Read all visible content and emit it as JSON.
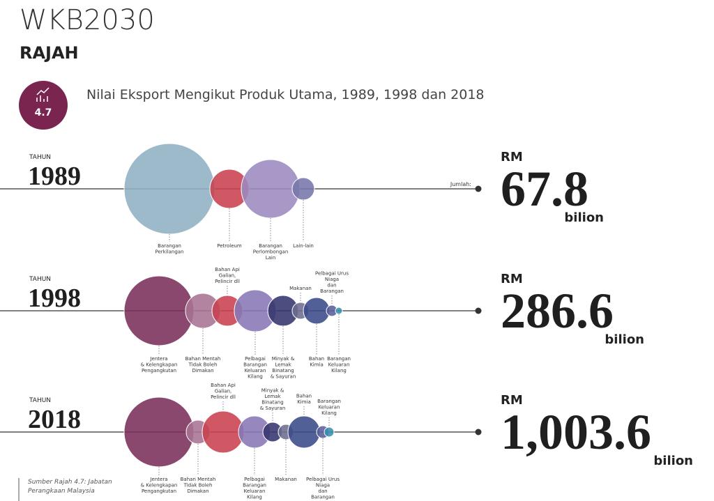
{
  "header": {
    "brand": "WKB2030",
    "section": "RAJAH"
  },
  "figure": {
    "number": "4.7",
    "title": "Nilai Eksport Mengikut Produk Utama, 1989, 1998 dan 2018"
  },
  "rows": [
    {
      "year_label": "TAHUN",
      "year": "1989",
      "total_label": "Jumlah:",
      "currency": "RM",
      "total": "67.8",
      "unit": "bilion",
      "products": [
        [
          "Barangan",
          "Perkilangan"
        ],
        [
          "Petroleum"
        ],
        [
          "Barangan",
          "Perlombongan",
          "Lain"
        ],
        [
          "Lain-lain"
        ]
      ]
    },
    {
      "year_label": "TAHUN",
      "year": "1998",
      "currency": "RM",
      "total": "286.6",
      "unit": "bilion",
      "products": [
        [
          "Jentera",
          "& Kelengkapan",
          "Pengangkutan"
        ],
        [
          "Bahan Mentah",
          "Tidak Boleh",
          "Dimakan"
        ],
        [
          "Bahan Api",
          "Galian,",
          "Pelincir dll"
        ],
        [
          "Pelbagai",
          "Barangan",
          "Keluaran",
          "Kilang"
        ],
        [
          "Minyak &",
          "Lemak",
          "Binatang",
          "& Sayuran"
        ],
        [
          "Makanan"
        ],
        [
          "Bahan",
          "Kimia"
        ],
        [
          "Pelbagai Urus",
          "Niaga",
          "dan",
          "Barangan"
        ],
        [
          "Barangan",
          "Keluaran",
          "Kilang"
        ]
      ]
    },
    {
      "year_label": "TAHUN",
      "year": "2018",
      "currency": "RM",
      "total": "1,003.6",
      "unit": "bilion",
      "products": [
        [
          "Jentera",
          "& Kelengkapan",
          "Pengangkutan"
        ],
        [
          "Bahan Mentah",
          "Tidak Boleh",
          "Dimakan"
        ],
        [
          "Bahan Api",
          "Galian,",
          "Pelincir dll"
        ],
        [
          "Pelbagai",
          "Barangan",
          "Keluaran",
          "Kilang"
        ],
        [
          "Minyak &",
          "Lemak",
          "Binatang",
          "& Sayuran"
        ],
        [
          "Makanan"
        ],
        [
          "Bahan",
          "Kimia"
        ],
        [
          "Pelbagai Urus",
          "Niaga",
          "dan",
          "Barangan"
        ],
        [
          "Barangan",
          "Keluaran",
          "Kilang"
        ]
      ]
    }
  ],
  "source": [
    "Sumber Rajah 4.7: Jabatan",
    "Perangkaan Malaysia"
  ]
}
